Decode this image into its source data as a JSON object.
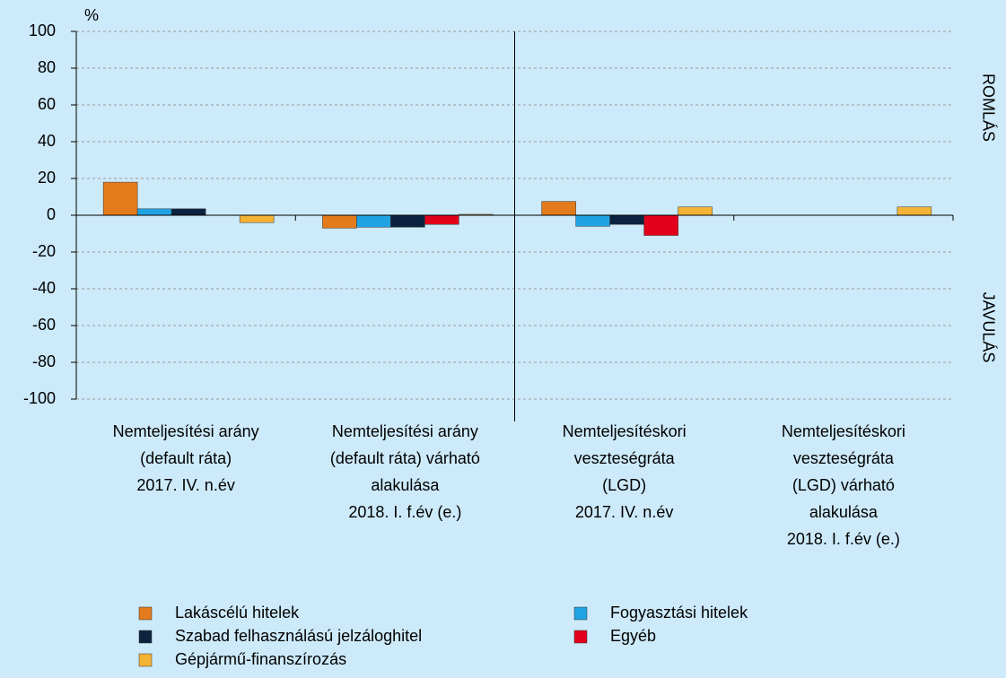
{
  "chart_data": {
    "type": "bar",
    "y_unit": "%",
    "categories": [
      [
        "Nemteljesítési arány",
        "(default ráta)",
        "2017. IV. n.év"
      ],
      [
        "Nemteljesítési arány",
        "(default ráta) várható",
        "alakulása",
        "2018. I. f.év (e.)"
      ],
      [
        "Nemteljesítéskori",
        "veszteségráta",
        "(LGD)",
        "2017. IV. n.év"
      ],
      [
        "Nemteljesítéskori",
        "veszteségráta",
        "(LGD) várható",
        "alakulása",
        "2018. I. f.év (e.)"
      ]
    ],
    "series": [
      {
        "name": "Lakáscélú hitelek",
        "color": "#e37b1c",
        "values": [
          18,
          -7,
          7.5,
          0
        ]
      },
      {
        "name": "Fogyasztási hitelek",
        "color": "#1fa3e3",
        "values": [
          3.5,
          -6.5,
          -6,
          0
        ]
      },
      {
        "name": "Szabad felhasználású jelzáloghitel",
        "color": "#0c2340",
        "values": [
          3.5,
          -6.5,
          -5,
          0
        ]
      },
      {
        "name": "Egyéb",
        "color": "#e2001a",
        "values": [
          0,
          -5,
          -11,
          0
        ]
      },
      {
        "name": "Gépjármű-finanszírozás",
        "color": "#f5b335",
        "values": [
          -4,
          0.5,
          4.5,
          4.5
        ]
      }
    ],
    "ylim": [
      -100,
      100
    ],
    "yticks": [
      -100,
      -80,
      -60,
      -40,
      -20,
      0,
      20,
      40,
      60,
      80,
      100
    ],
    "grid": true,
    "side_labels": {
      "top": "ROMLÁS",
      "bottom": "JAVULÁS"
    }
  }
}
